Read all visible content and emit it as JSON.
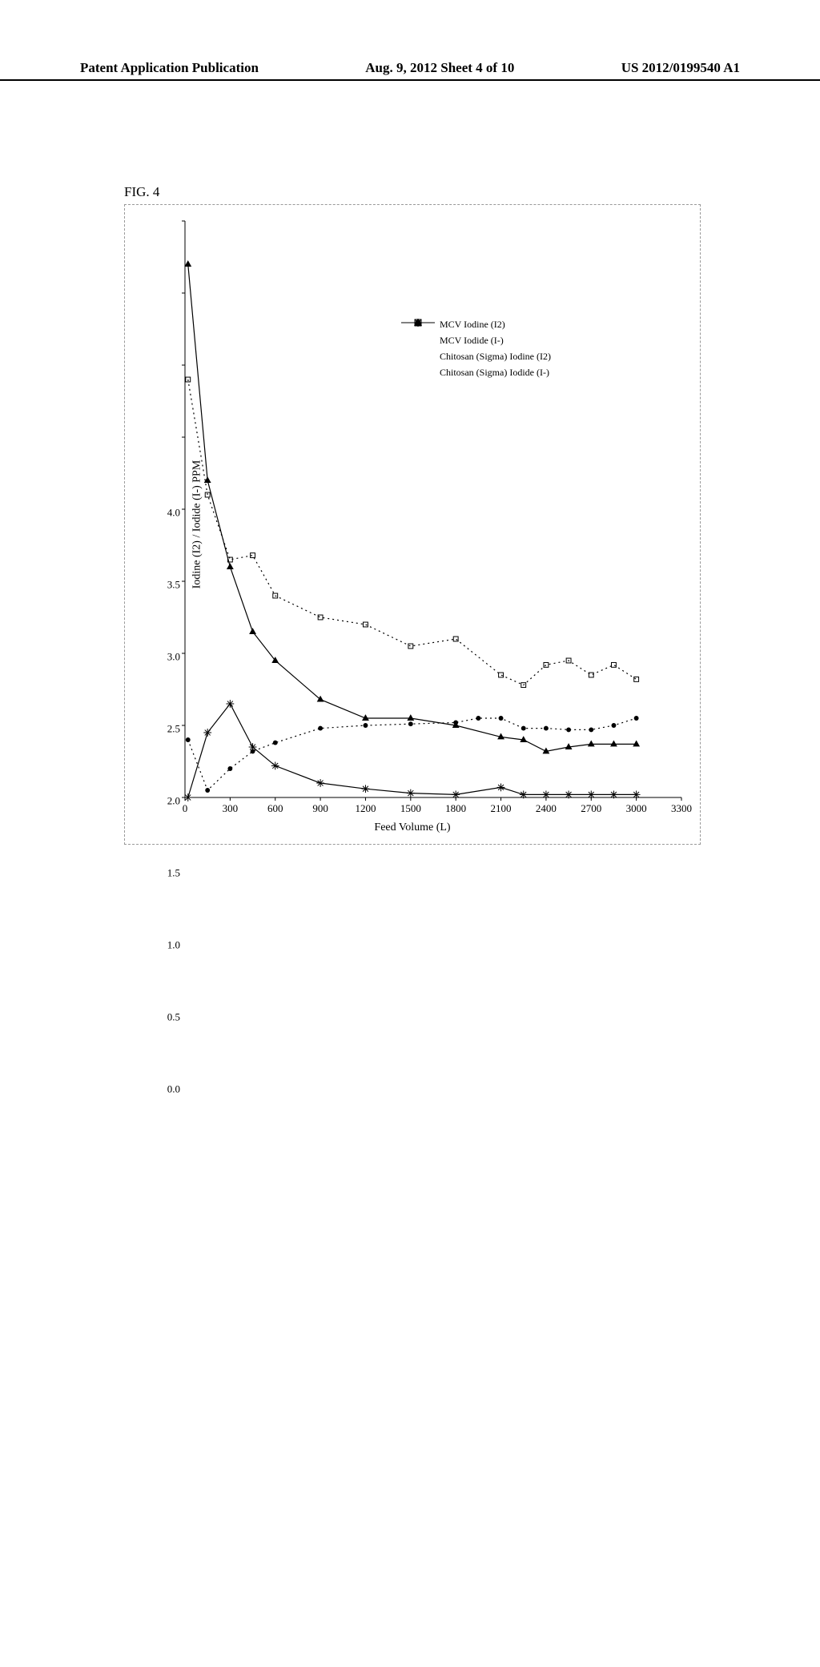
{
  "header": {
    "left": "Patent Application Publication",
    "center": "Aug. 9, 2012  Sheet 4 of 10",
    "right": "US 2012/0199540 A1"
  },
  "figure_label": "FIG. 4",
  "chart": {
    "type": "line",
    "x_label": "Feed Volume (L)",
    "y_label": "Iodine (I2) / Iodide (I-) PPM",
    "xlim": [
      0,
      3300
    ],
    "ylim": [
      0,
      4.0
    ],
    "x_ticks": [
      0,
      300,
      600,
      900,
      1200,
      1500,
      1800,
      2100,
      2400,
      2700,
      3000,
      3300
    ],
    "y_ticks": [
      0.0,
      0.5,
      1.0,
      1.5,
      2.0,
      2.5,
      3.0,
      3.5,
      4.0
    ],
    "y_tick_labels": [
      "0.0",
      "0.5",
      "1.0",
      "1.5",
      "2.0",
      "2.5",
      "3.0",
      "3.5",
      "4.0"
    ],
    "background_color": "#ffffff",
    "axis_color": "#000000",
    "series": [
      {
        "name": "MCV Iodine (I2)",
        "marker": "triangle-filled",
        "line_style": "solid",
        "color": "#000000",
        "x": [
          20,
          150,
          300,
          450,
          600,
          900,
          1200,
          1500,
          1800,
          2100,
          2250,
          2400,
          2550,
          2700,
          2850,
          3000
        ],
        "y": [
          3.7,
          2.2,
          1.6,
          1.15,
          0.95,
          0.68,
          0.55,
          0.55,
          0.5,
          0.42,
          0.4,
          0.32,
          0.35,
          0.37,
          0.37,
          0.37
        ]
      },
      {
        "name": "MCV Iodide (I-)",
        "marker": "circle-filled",
        "line_style": "dotted",
        "color": "#000000",
        "x": [
          20,
          150,
          300,
          450,
          600,
          900,
          1200,
          1500,
          1800,
          1950,
          2100,
          2250,
          2400,
          2550,
          2700,
          2850,
          3000
        ],
        "y": [
          0.4,
          0.05,
          0.2,
          0.32,
          0.38,
          0.48,
          0.5,
          0.51,
          0.52,
          0.55,
          0.55,
          0.48,
          0.48,
          0.47,
          0.47,
          0.5,
          0.55
        ]
      },
      {
        "name": "Chitosan (Sigma) Iodine (I2)",
        "marker": "asterisk",
        "line_style": "solid",
        "color": "#000000",
        "x": [
          20,
          150,
          300,
          450,
          600,
          900,
          1200,
          1500,
          1800,
          2100,
          2250,
          2400,
          2550,
          2700,
          2850,
          3000
        ],
        "y": [
          0.0,
          0.45,
          0.65,
          0.35,
          0.22,
          0.1,
          0.06,
          0.03,
          0.02,
          0.07,
          0.02,
          0.02,
          0.02,
          0.02,
          0.02,
          0.02
        ]
      },
      {
        "name": "Chitosan (Sigma) Iodide (I-)",
        "marker": "square-open",
        "line_style": "dotted",
        "color": "#000000",
        "x": [
          20,
          150,
          300,
          450,
          600,
          900,
          1200,
          1500,
          1800,
          2100,
          2250,
          2400,
          2550,
          2700,
          2850,
          3000
        ],
        "y": [
          2.9,
          2.1,
          1.65,
          1.68,
          1.4,
          1.25,
          1.2,
          1.05,
          1.1,
          0.85,
          0.78,
          0.92,
          0.95,
          0.85,
          0.92,
          0.82
        ]
      }
    ],
    "legend_position": "inside-top-center",
    "marker_size": 7,
    "line_width": 1.2
  }
}
